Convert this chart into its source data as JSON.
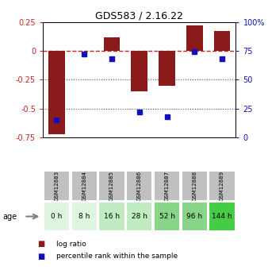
{
  "title": "GDS583 / 2.16.22",
  "samples": [
    "GSM12883",
    "GSM12884",
    "GSM12885",
    "GSM12886",
    "GSM12887",
    "GSM12888",
    "GSM12889"
  ],
  "ages": [
    "0 h",
    "8 h",
    "16 h",
    "28 h",
    "52 h",
    "96 h",
    "144 h"
  ],
  "log_ratio": [
    -0.72,
    0.0,
    0.12,
    -0.35,
    -0.3,
    0.22,
    0.17
  ],
  "percentile": [
    15,
    72,
    68,
    22,
    18,
    74,
    68
  ],
  "bar_color": "#8B1A1A",
  "dot_color": "#1111BB",
  "ylim_left": [
    -0.75,
    0.25
  ],
  "ylim_right": [
    0,
    100
  ],
  "yticks_left": [
    0.25,
    0,
    -0.25,
    -0.5,
    -0.75
  ],
  "yticks_right": [
    100,
    75,
    50,
    25,
    0
  ],
  "ytick_labels_left": [
    "0.25",
    "0",
    "-0.25",
    "-0.5",
    "-0.75"
  ],
  "ytick_labels_right": [
    "100%",
    "75",
    "50",
    "25",
    "0"
  ],
  "age_colors": [
    "#e0f5e0",
    "#e0f5e0",
    "#c0ecc0",
    "#c0ecc0",
    "#88d488",
    "#88d488",
    "#44cc44"
  ],
  "gsm_bg_color": "#c0c0c0",
  "legend_log_ratio": "log ratio",
  "legend_percentile": "percentile rank within the sample",
  "zero_line_color": "#cc2222",
  "dotted_line_color": "#555555",
  "age_label": "age"
}
